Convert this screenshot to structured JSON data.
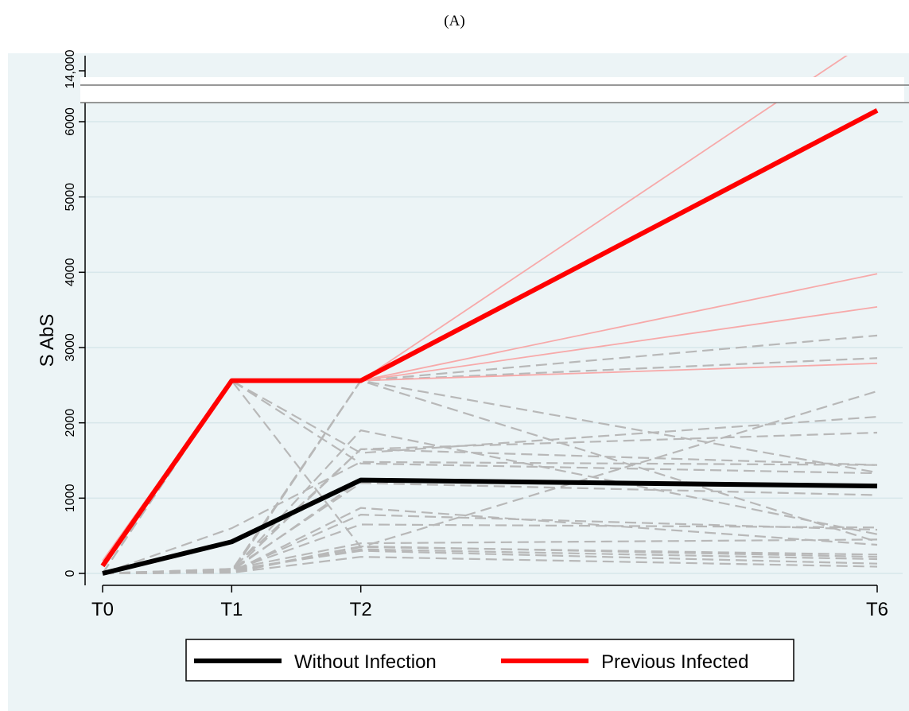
{
  "panel_label": "(A)",
  "colors": {
    "background": "#ecf4f6",
    "without_infection": "#000000",
    "previous_infected": "#ff0000",
    "individual_infected": "#f7a9a9",
    "individual_uninfected": "#b8b8b8"
  },
  "chart_data": {
    "type": "line",
    "title": "",
    "xlabel": "",
    "ylabel": "S AbS",
    "x": [
      "T0",
      "T1",
      "T2",
      "T6"
    ],
    "x_positions_months": [
      0,
      1,
      2,
      6
    ],
    "ylim": [
      0,
      6200
    ],
    "y_break": {
      "upper_tick": 14000,
      "upper_tick_label": "14,000"
    },
    "y_ticks": [
      0,
      1000,
      2000,
      3000,
      4000,
      5000,
      6000
    ],
    "grid": true,
    "legend": {
      "placement": "bottom",
      "entries": [
        "Without Infection",
        "Previous Infected"
      ]
    },
    "series": [
      {
        "name": "Without Infection",
        "values": [
          0,
          420,
          1240,
          1160
        ],
        "style": "thick",
        "color": "#000000"
      },
      {
        "name": "Previous Infected",
        "values": [
          100,
          2560,
          2560,
          6150
        ],
        "style": "thick",
        "color": "#ff0000"
      }
    ],
    "individual_previous_infected": [
      [
        170,
        2560,
        2560,
        14000
      ],
      [
        130,
        2560,
        2560,
        3980
      ],
      [
        120,
        2560,
        2560,
        3540
      ],
      [
        110,
        2560,
        2560,
        2790
      ]
    ],
    "individual_without_infection": [
      [
        0,
        40,
        2560,
        3160
      ],
      [
        0,
        30,
        2560,
        2860
      ],
      [
        0,
        20,
        2560,
        1340
      ],
      [
        0,
        600,
        1480,
        1440
      ],
      [
        0,
        10,
        2560,
        420
      ],
      [
        0,
        60,
        1650,
        1870
      ],
      [
        0,
        2560,
        1600,
        2080
      ],
      [
        0,
        2560,
        350,
        2420
      ],
      [
        0,
        2560,
        1460,
        1330
      ],
      [
        0,
        20,
        870,
        380
      ],
      [
        0,
        30,
        780,
        580
      ],
      [
        0,
        40,
        650,
        610
      ],
      [
        0,
        50,
        1200,
        1040
      ],
      [
        0,
        20,
        360,
        220
      ],
      [
        0,
        30,
        320,
        190
      ],
      [
        0,
        10,
        220,
        90
      ],
      [
        0,
        50,
        300,
        130
      ],
      [
        0,
        20,
        1650,
        1440
      ],
      [
        0,
        40,
        1900,
        520
      ],
      [
        0,
        30,
        1240,
        1160
      ],
      [
        0,
        60,
        400,
        450
      ],
      [
        0,
        10,
        350,
        250
      ]
    ]
  }
}
